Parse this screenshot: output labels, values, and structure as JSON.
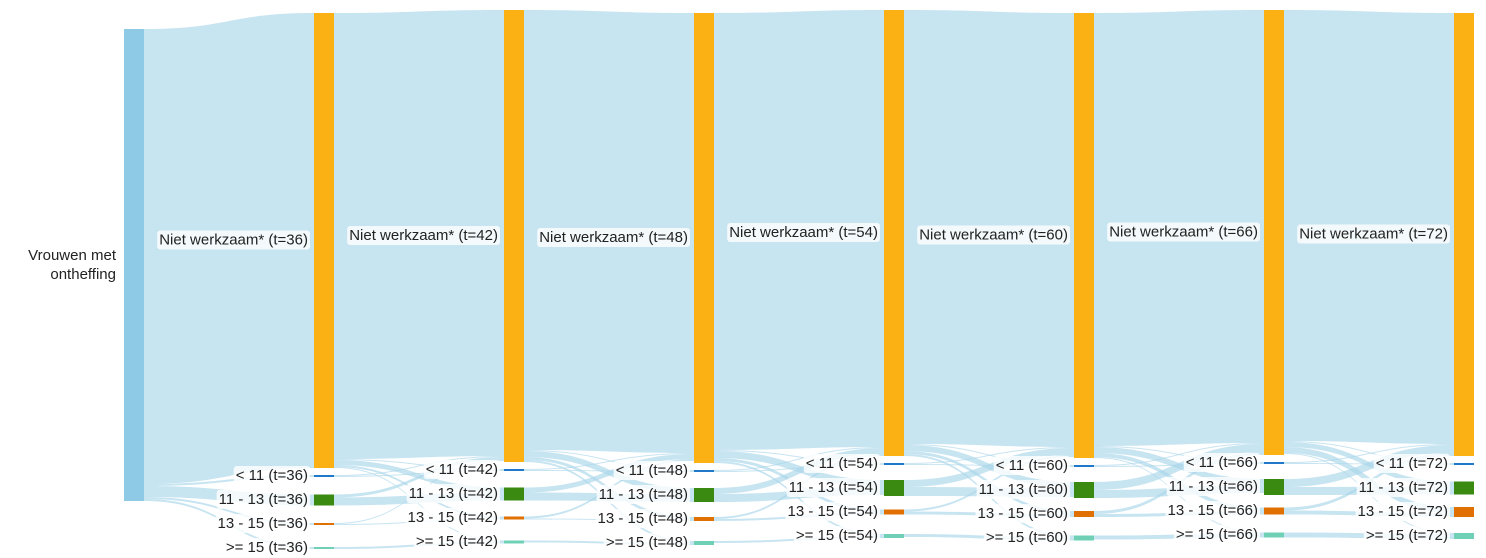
{
  "chart_data": {
    "type": "sankey",
    "nodes": [
      {
        "label": "Vrouwen met ontheffing",
        "color": "#8ecae6"
      },
      {
        "label": "Niet werkzaam* (t=36)",
        "color": "#fbb114"
      },
      {
        "label": "< 11 (t=36)",
        "color": "#1f78c8"
      },
      {
        "label": "11 - 13 (t=36)",
        "color": "#3a8a12"
      },
      {
        "label": "13 - 15 (t=36)",
        "color": "#e07000"
      },
      {
        "label": ">= 15 (t=36)",
        "color": "#6fd0b5"
      },
      {
        "label": "Niet werkzaam* (t=42)",
        "color": "#fbb114"
      },
      {
        "label": "< 11 (t=42)",
        "color": "#1f78c8"
      },
      {
        "label": "11 - 13 (t=42)",
        "color": "#3a8a12"
      },
      {
        "label": "13 - 15 (t=42)",
        "color": "#e07000"
      },
      {
        "label": ">= 15 (t=42)",
        "color": "#6fd0b5"
      },
      {
        "label": "Niet werkzaam* (t=48)",
        "color": "#fbb114"
      },
      {
        "label": "< 11 (t=48)",
        "color": "#1f78c8"
      },
      {
        "label": "11 - 13 (t=48)",
        "color": "#3a8a12"
      },
      {
        "label": "13 - 15 (t=48)",
        "color": "#e07000"
      },
      {
        "label": ">= 15 (t=48)",
        "color": "#6fd0b5"
      },
      {
        "label": "Niet werkzaam* (t=54)",
        "color": "#fbb114"
      },
      {
        "label": "< 11 (t=54)",
        "color": "#1f78c8"
      },
      {
        "label": "11 - 13 (t=54)",
        "color": "#3a8a12"
      },
      {
        "label": "13 - 15 (t=54)",
        "color": "#e07000"
      },
      {
        "label": ">= 15 (t=54)",
        "color": "#6fd0b5"
      },
      {
        "label": "Niet werkzaam* (t=60)",
        "color": "#fbb114"
      },
      {
        "label": "< 11 (t=60)",
        "color": "#1f78c8"
      },
      {
        "label": "11 - 13 (t=60)",
        "color": "#3a8a12"
      },
      {
        "label": "13 - 15 (t=60)",
        "color": "#e07000"
      },
      {
        "label": ">= 15 (t=60)",
        "color": "#6fd0b5"
      },
      {
        "label": "Niet werkzaam* (t=66)",
        "color": "#fbb114"
      },
      {
        "label": "< 11 (t=66)",
        "color": "#1f78c8"
      },
      {
        "label": "11 - 13 (t=66)",
        "color": "#3a8a12"
      },
      {
        "label": "13 - 15 (t=66)",
        "color": "#e07000"
      },
      {
        "label": ">= 15 (t=66)",
        "color": "#6fd0b5"
      },
      {
        "label": "Niet werkzaam* (t=72)",
        "color": "#fbb114"
      },
      {
        "label": "< 11 (t=72)",
        "color": "#1f78c8"
      },
      {
        "label": "11 - 13 (t=72)",
        "color": "#3a8a12"
      },
      {
        "label": "13 - 15 (t=72)",
        "color": "#e07000"
      },
      {
        "label": ">= 15 (t=72)",
        "color": "#6fd0b5"
      }
    ],
    "link_color": "#a9d5ea",
    "links": [
      {
        "source": 0,
        "target": 1,
        "value": 455
      },
      {
        "source": 0,
        "target": 2,
        "value": 2
      },
      {
        "source": 0,
        "target": 3,
        "value": 11
      },
      {
        "source": 0,
        "target": 4,
        "value": 2
      },
      {
        "source": 0,
        "target": 5,
        "value": 2
      },
      {
        "source": 1,
        "target": 6,
        "value": 446
      },
      {
        "source": 1,
        "target": 7,
        "value": 1
      },
      {
        "source": 1,
        "target": 8,
        "value": 5
      },
      {
        "source": 1,
        "target": 9,
        "value": 2
      },
      {
        "source": 1,
        "target": 10,
        "value": 1
      },
      {
        "source": 2,
        "target": 6,
        "value": 1
      },
      {
        "source": 2,
        "target": 7,
        "value": 1
      },
      {
        "source": 3,
        "target": 6,
        "value": 3
      },
      {
        "source": 3,
        "target": 8,
        "value": 8
      },
      {
        "source": 4,
        "target": 6,
        "value": 1
      },
      {
        "source": 4,
        "target": 9,
        "value": 1
      },
      {
        "source": 5,
        "target": 10,
        "value": 2
      },
      {
        "source": 6,
        "target": 11,
        "value": 440
      },
      {
        "source": 6,
        "target": 12,
        "value": 1
      },
      {
        "source": 6,
        "target": 13,
        "value": 6
      },
      {
        "source": 6,
        "target": 14,
        "value": 3
      },
      {
        "source": 6,
        "target": 15,
        "value": 2
      },
      {
        "source": 7,
        "target": 11,
        "value": 1
      },
      {
        "source": 7,
        "target": 12,
        "value": 1
      },
      {
        "source": 8,
        "target": 11,
        "value": 5
      },
      {
        "source": 8,
        "target": 13,
        "value": 8
      },
      {
        "source": 9,
        "target": 11,
        "value": 2
      },
      {
        "source": 9,
        "target": 14,
        "value": 1
      },
      {
        "source": 10,
        "target": 15,
        "value": 2
      },
      {
        "source": 11,
        "target": 16,
        "value": 437
      },
      {
        "source": 11,
        "target": 17,
        "value": 1
      },
      {
        "source": 11,
        "target": 18,
        "value": 7
      },
      {
        "source": 11,
        "target": 19,
        "value": 3
      },
      {
        "source": 11,
        "target": 20,
        "value": 2
      },
      {
        "source": 12,
        "target": 16,
        "value": 1
      },
      {
        "source": 12,
        "target": 17,
        "value": 1
      },
      {
        "source": 13,
        "target": 16,
        "value": 6
      },
      {
        "source": 13,
        "target": 18,
        "value": 8
      },
      {
        "source": 14,
        "target": 16,
        "value": 2
      },
      {
        "source": 14,
        "target": 19,
        "value": 2
      },
      {
        "source": 15,
        "target": 20,
        "value": 2
      },
      {
        "source": 16,
        "target": 21,
        "value": 434
      },
      {
        "source": 16,
        "target": 22,
        "value": 1
      },
      {
        "source": 16,
        "target": 23,
        "value": 6
      },
      {
        "source": 16,
        "target": 24,
        "value": 3
      },
      {
        "source": 16,
        "target": 25,
        "value": 2
      },
      {
        "source": 17,
        "target": 21,
        "value": 1
      },
      {
        "source": 17,
        "target": 22,
        "value": 1
      },
      {
        "source": 18,
        "target": 21,
        "value": 7
      },
      {
        "source": 18,
        "target": 23,
        "value": 9
      },
      {
        "source": 19,
        "target": 21,
        "value": 2
      },
      {
        "source": 19,
        "target": 24,
        "value": 3
      },
      {
        "source": 20,
        "target": 25,
        "value": 3
      },
      {
        "source": 21,
        "target": 26,
        "value": 433
      },
      {
        "source": 21,
        "target": 27,
        "value": 1
      },
      {
        "source": 21,
        "target": 28,
        "value": 6
      },
      {
        "source": 21,
        "target": 29,
        "value": 4
      },
      {
        "source": 21,
        "target": 30,
        "value": 1
      },
      {
        "source": 22,
        "target": 26,
        "value": 1
      },
      {
        "source": 22,
        "target": 27,
        "value": 1
      },
      {
        "source": 23,
        "target": 26,
        "value": 8
      },
      {
        "source": 23,
        "target": 28,
        "value": 8
      },
      {
        "source": 24,
        "target": 26,
        "value": 3
      },
      {
        "source": 24,
        "target": 29,
        "value": 3
      },
      {
        "source": 25,
        "target": 30,
        "value": 4
      },
      {
        "source": 26,
        "target": 31,
        "value": 431
      },
      {
        "source": 26,
        "target": 32,
        "value": 1
      },
      {
        "source": 26,
        "target": 33,
        "value": 5
      },
      {
        "source": 26,
        "target": 34,
        "value": 6
      },
      {
        "source": 26,
        "target": 35,
        "value": 1
      },
      {
        "source": 27,
        "target": 31,
        "value": 1
      },
      {
        "source": 27,
        "target": 32,
        "value": 1
      },
      {
        "source": 28,
        "target": 31,
        "value": 8
      },
      {
        "source": 28,
        "target": 33,
        "value": 8
      },
      {
        "source": 29,
        "target": 31,
        "value": 3
      },
      {
        "source": 29,
        "target": 34,
        "value": 4
      },
      {
        "source": 30,
        "target": 35,
        "value": 5
      }
    ]
  }
}
